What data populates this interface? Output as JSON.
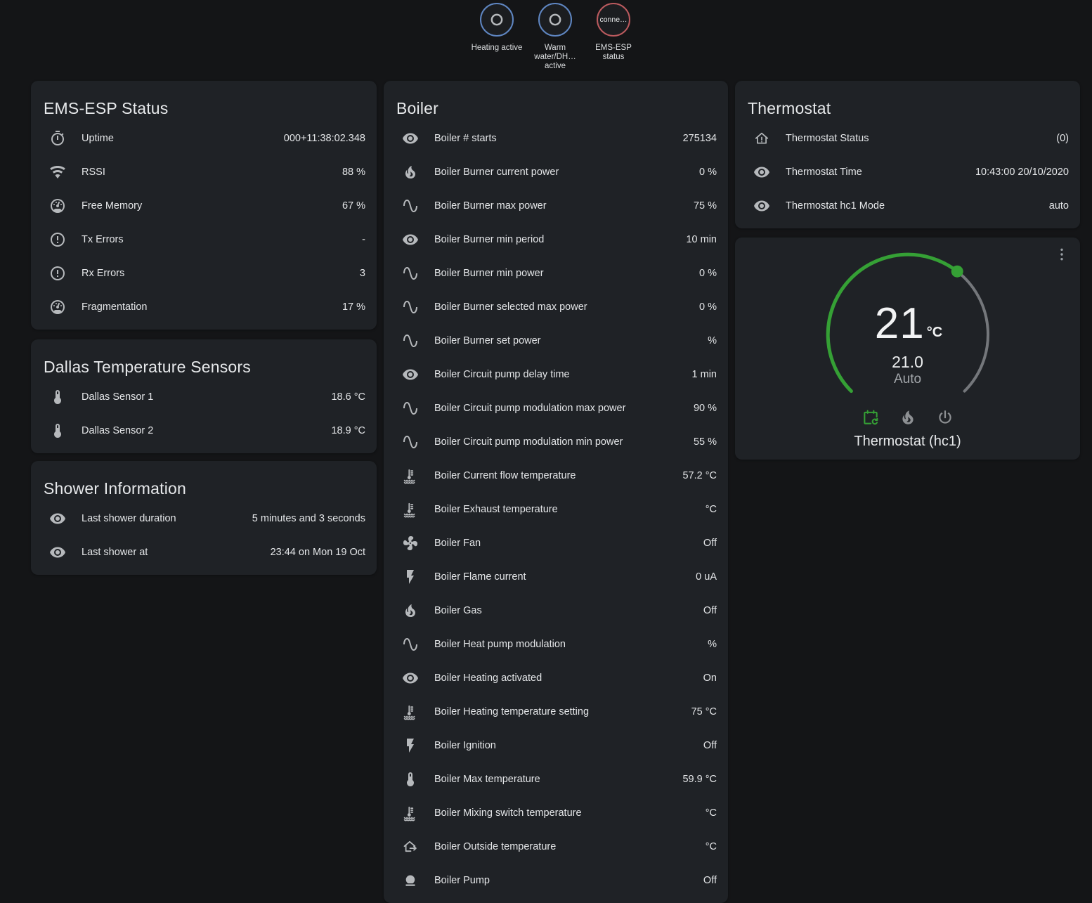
{
  "colors": {
    "page_bg": "#141517",
    "card_bg": "#1f2226",
    "accent_green": "#35a035",
    "badge_blue": "#5f86c2",
    "badge_red": "#bb5a5e",
    "icon_gray": "#b6b9bc",
    "arc_gray": "#74777b"
  },
  "badges": {
    "items": [
      {
        "name": "heating-active",
        "label": "Heating active",
        "icon": "ring",
        "border": "#5f86c2"
      },
      {
        "name": "warm-water-dhw",
        "label": "Warm water/DH… active",
        "icon": "ring",
        "border": "#5f86c2"
      },
      {
        "name": "ems-esp-status",
        "label": "EMS-ESP status",
        "text": "conne…",
        "border": "#bb5a5e"
      }
    ]
  },
  "cards": {
    "ems": {
      "title": "EMS-ESP Status",
      "rows": [
        {
          "icon": "timer",
          "label": "Uptime",
          "value": "000+11:38:02.348"
        },
        {
          "icon": "wifi",
          "label": "RSSI",
          "value": "88 %"
        },
        {
          "icon": "gauge",
          "label": "Free Memory",
          "value": "67 %"
        },
        {
          "icon": "alert-circle",
          "label": "Tx Errors",
          "value": "-"
        },
        {
          "icon": "alert-circle",
          "label": "Rx Errors",
          "value": "3"
        },
        {
          "icon": "gauge",
          "label": "Fragmentation",
          "value": "17 %"
        }
      ]
    },
    "dallas": {
      "title": "Dallas Temperature Sensors",
      "rows": [
        {
          "icon": "thermometer",
          "label": "Dallas Sensor 1",
          "value": "18.6 °C"
        },
        {
          "icon": "thermometer",
          "label": "Dallas Sensor 2",
          "value": "18.9 °C"
        }
      ]
    },
    "shower": {
      "title": "Shower Information",
      "rows": [
        {
          "icon": "eye",
          "label": "Last shower duration",
          "value": "5 minutes and 3 seconds"
        },
        {
          "icon": "eye",
          "label": "Last shower at",
          "value": "23:44 on Mon 19 Oct"
        }
      ]
    },
    "boiler": {
      "title": "Boiler",
      "rows": [
        {
          "icon": "eye",
          "label": "Boiler # starts",
          "value": "275134"
        },
        {
          "icon": "fire",
          "label": "Boiler Burner current power",
          "value": "0 %"
        },
        {
          "icon": "sine",
          "label": "Boiler Burner max power",
          "value": "75 %"
        },
        {
          "icon": "eye",
          "label": "Boiler Burner min period",
          "value": "10 min"
        },
        {
          "icon": "sine",
          "label": "Boiler Burner min power",
          "value": "0 %"
        },
        {
          "icon": "sine",
          "label": "Boiler Burner selected max power",
          "value": "0 %"
        },
        {
          "icon": "sine",
          "label": "Boiler Burner set power",
          "value": "%"
        },
        {
          "icon": "eye",
          "label": "Boiler Circuit pump delay time",
          "value": "1 min"
        },
        {
          "icon": "sine",
          "label": "Boiler Circuit pump modulation max power",
          "value": "90 %"
        },
        {
          "icon": "sine",
          "label": "Boiler Circuit pump modulation min power",
          "value": "55 %"
        },
        {
          "icon": "coolant",
          "label": "Boiler Current flow temperature",
          "value": "57.2 °C"
        },
        {
          "icon": "coolant",
          "label": "Boiler Exhaust temperature",
          "value": "°C"
        },
        {
          "icon": "fan",
          "label": "Boiler Fan",
          "value": "Off"
        },
        {
          "icon": "flash",
          "label": "Boiler Flame current",
          "value": "0 uA"
        },
        {
          "icon": "fire",
          "label": "Boiler Gas",
          "value": "Off"
        },
        {
          "icon": "sine",
          "label": "Boiler Heat pump modulation",
          "value": "%"
        },
        {
          "icon": "eye",
          "label": "Boiler Heating activated",
          "value": "On"
        },
        {
          "icon": "coolant",
          "label": "Boiler Heating temperature setting",
          "value": "75 °C"
        },
        {
          "icon": "flash",
          "label": "Boiler Ignition",
          "value": "Off"
        },
        {
          "icon": "thermometer",
          "label": "Boiler Max temperature",
          "value": "59.9 °C"
        },
        {
          "icon": "coolant",
          "label": "Boiler Mixing switch temperature",
          "value": "°C"
        },
        {
          "icon": "home-export",
          "label": "Boiler Outside temperature",
          "value": "°C"
        },
        {
          "icon": "pump",
          "label": "Boiler Pump",
          "value": "Off"
        }
      ]
    },
    "thermostat": {
      "title": "Thermostat",
      "rows": [
        {
          "icon": "home-alert",
          "label": "Thermostat Status",
          "value": "(0)"
        },
        {
          "icon": "eye",
          "label": "Thermostat Time",
          "value": "10:43:00 20/10/2020"
        },
        {
          "icon": "eye",
          "label": "Thermostat hc1 Mode",
          "value": "auto"
        }
      ]
    },
    "dial": {
      "current_temp": "21",
      "unit": "°C",
      "target_temp": "21.0",
      "mode_label": "Auto",
      "entity_name": "Thermostat (hc1)",
      "accent": "#35a035",
      "modes": [
        {
          "name": "mode-auto",
          "icon": "calendar-sync",
          "active": true
        },
        {
          "name": "mode-heat",
          "icon": "fire",
          "active": false
        },
        {
          "name": "mode-off",
          "icon": "power",
          "active": false
        }
      ]
    }
  }
}
